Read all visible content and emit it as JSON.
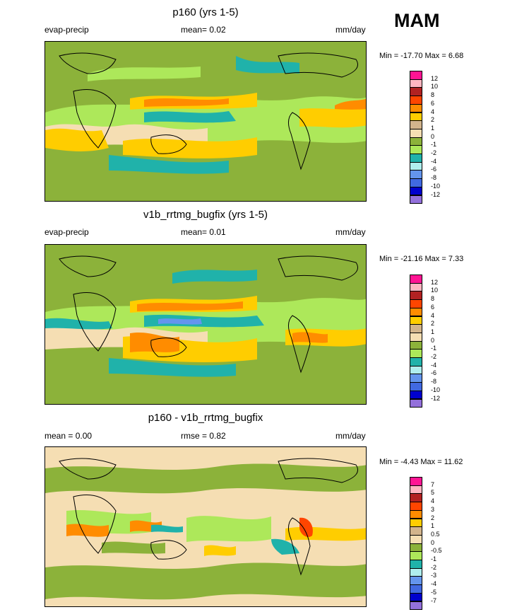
{
  "season": "MAM",
  "panels": [
    {
      "title": "p160 (yrs 1-5)",
      "left_label": "evap-precip",
      "center_label": "mean=  0.02",
      "units": "mm/day",
      "stats": "Min = -17.70 Max =   6.68",
      "levels": [
        "12",
        "10",
        "8",
        "6",
        "4",
        "2",
        "1",
        "0",
        "-1",
        "-2",
        "-4",
        "-6",
        "-8",
        "-10",
        "-12"
      ],
      "colors": [
        "#ff1493",
        "#ffb6c1",
        "#b22222",
        "#ff4500",
        "#ff8c00",
        "#ffcd00",
        "#d2b48c",
        "#f5deb3",
        "#8cb23a",
        "#ade85a",
        "#20b2aa",
        "#afeeee",
        "#6495ed",
        "#4169e1",
        "#0000cd",
        "#9370db"
      ]
    },
    {
      "title": "v1b_rrtmg_bugfix (yrs 1-5)",
      "left_label": "evap-precip",
      "center_label": "mean=  0.01",
      "units": "mm/day",
      "stats": "Min = -21.16 Max =   7.33",
      "levels": [
        "12",
        "10",
        "8",
        "6",
        "4",
        "2",
        "1",
        "0",
        "-1",
        "-2",
        "-4",
        "-6",
        "-8",
        "-10",
        "-12"
      ],
      "colors": [
        "#ff1493",
        "#ffb6c1",
        "#b22222",
        "#ff4500",
        "#ff8c00",
        "#ffcd00",
        "#d2b48c",
        "#f5deb3",
        "#8cb23a",
        "#ade85a",
        "#20b2aa",
        "#afeeee",
        "#6495ed",
        "#4169e1",
        "#0000cd",
        "#9370db"
      ]
    },
    {
      "title": "p160 - v1b_rrtmg_bugfix",
      "left_label": "mean =   0.00",
      "center_label": "rmse =  0.82",
      "units": "mm/day",
      "stats": "Min =  -4.43 Max =  11.62",
      "levels": [
        "7",
        "5",
        "4",
        "3",
        "2",
        "1",
        "0.5",
        "0",
        "-0.5",
        "-1",
        "-2",
        "-3",
        "-4",
        "-5",
        "-7"
      ],
      "colors": [
        "#ff1493",
        "#ffb6c1",
        "#b22222",
        "#ff4500",
        "#ff8c00",
        "#ffcd00",
        "#d2b48c",
        "#f5deb3",
        "#8cb23a",
        "#ade85a",
        "#20b2aa",
        "#afeeee",
        "#6495ed",
        "#4169e1",
        "#0000cd",
        "#9370db"
      ]
    }
  ]
}
